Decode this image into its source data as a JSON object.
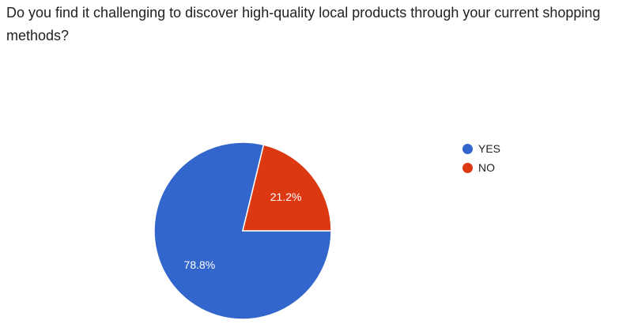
{
  "question": "Do you find it challenging to discover high-quality local products through your current shopping methods?",
  "chart_data": {
    "type": "pie",
    "categories": [
      "YES",
      "NO"
    ],
    "values": [
      78.8,
      21.2
    ],
    "data_labels": [
      "78.8%",
      "21.2%"
    ],
    "colors": [
      "#3366cc",
      "#dc3912"
    ],
    "legend_position": "right"
  }
}
